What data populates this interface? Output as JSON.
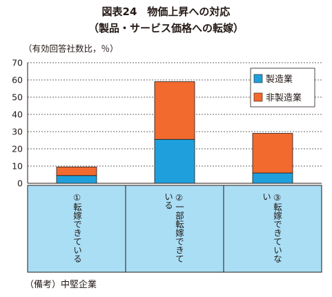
{
  "title": "図表24　物価上昇への対応",
  "subtitle": "（製品・サービス価格への転嫁）",
  "unit_label": "（有効回答社数比，％）",
  "note": "（備考）中堅企業",
  "colors": {
    "manufacturing": "#1fa0dc",
    "nonmanufacturing": "#f26a2e",
    "category_bg": "#a9def5"
  },
  "chart_data": {
    "type": "bar",
    "stacked": true,
    "categories": [
      "①転嫁できている",
      "②一部転嫁できている",
      "③転嫁できていない"
    ],
    "series": [
      {
        "name": "製造業",
        "values": [
          4.5,
          25.5,
          6
        ]
      },
      {
        "name": "非製造業",
        "values": [
          5,
          33.5,
          23
        ]
      }
    ],
    "ylim": [
      0,
      70
    ],
    "yticks": [
      0,
      10,
      20,
      30,
      40,
      50,
      60,
      70
    ],
    "grid": "dashed",
    "legend": "top-right"
  }
}
